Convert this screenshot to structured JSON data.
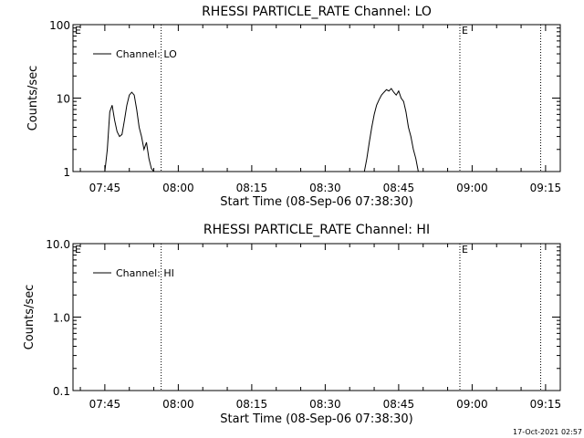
{
  "footer": {
    "timestamp": "17-Oct-2021 02:57"
  },
  "chart_data": [
    {
      "type": "line",
      "title": "RHESSI PARTICLE_RATE Channel: LO",
      "xlabel": "Start Time (08-Sep-06 07:38:30)",
      "ylabel": "Counts/sec",
      "y_scale": "log",
      "ylim": [
        1,
        100
      ],
      "xlim": [
        "07:38:30",
        "09:18:00"
      ],
      "x_ticks": [
        "07:45",
        "08:00",
        "08:15",
        "08:30",
        "08:45",
        "09:00",
        "09:15"
      ],
      "y_ticks": [
        "1",
        "10",
        "100"
      ],
      "legend": {
        "position": "top-left",
        "entries": [
          "Channel: LO"
        ]
      },
      "markers": [
        {
          "time": "07:56:30",
          "label": ""
        },
        {
          "time": "08:57:30",
          "label": "E"
        },
        {
          "time": "09:14:00",
          "label": ""
        }
      ],
      "start_marker_label": "E",
      "series": [
        {
          "name": "Channel: LO",
          "segments": [
            {
              "x": [
                "07:45:00",
                "07:45:30",
                "07:46:00",
                "07:46:30",
                "07:47:00",
                "07:47:30",
                "07:48:00",
                "07:48:30",
                "07:49:00",
                "07:49:30",
                "07:50:00",
                "07:50:30",
                "07:51:00",
                "07:51:30",
                "07:52:00",
                "07:52:30",
                "07:53:00",
                "07:53:30",
                "07:54:00",
                "07:54:30",
                "07:55:00"
              ],
              "y": [
                1.0,
                2.0,
                6.5,
                8.0,
                5.0,
                3.5,
                3.0,
                3.2,
                5.0,
                8.0,
                11.0,
                12.0,
                11.0,
                7.0,
                4.0,
                3.0,
                2.0,
                2.5,
                1.5,
                1.1,
                1.0
              ]
            },
            {
              "x": [
                "08:38:00",
                "08:38:30",
                "08:39:00",
                "08:39:30",
                "08:40:00",
                "08:40:30",
                "08:41:00",
                "08:41:30",
                "08:42:00",
                "08:42:30",
                "08:43:00",
                "08:43:30",
                "08:44:00",
                "08:44:30",
                "08:45:00",
                "08:45:30",
                "08:46:00",
                "08:46:30",
                "08:47:00",
                "08:47:30",
                "08:48:00",
                "08:48:30",
                "08:49:00"
              ],
              "y": [
                1.0,
                1.5,
                2.5,
                4.0,
                6.0,
                8.0,
                9.5,
                11.0,
                12.0,
                13.0,
                12.5,
                13.5,
                12.0,
                11.0,
                12.5,
                10.0,
                9.0,
                6.5,
                4.0,
                3.0,
                2.0,
                1.5,
                1.0
              ]
            }
          ]
        }
      ]
    },
    {
      "type": "line",
      "title": "RHESSI PARTICLE_RATE Channel: HI",
      "xlabel": "Start Time (08-Sep-06 07:38:30)",
      "ylabel": "Counts/sec",
      "y_scale": "log",
      "ylim": [
        0.1,
        10
      ],
      "xlim": [
        "07:38:30",
        "09:18:00"
      ],
      "x_ticks": [
        "07:45",
        "08:00",
        "08:15",
        "08:30",
        "08:45",
        "09:00",
        "09:15"
      ],
      "y_ticks": [
        "0.1",
        "1.0",
        "10.0"
      ],
      "legend": {
        "position": "top-left",
        "entries": [
          "Channel: HI"
        ]
      },
      "markers": [
        {
          "time": "07:56:30",
          "label": ""
        },
        {
          "time": "08:57:30",
          "label": "E"
        },
        {
          "time": "09:14:00",
          "label": ""
        }
      ],
      "start_marker_label": "E",
      "series": [
        {
          "name": "Channel: HI",
          "segments": []
        }
      ]
    }
  ]
}
